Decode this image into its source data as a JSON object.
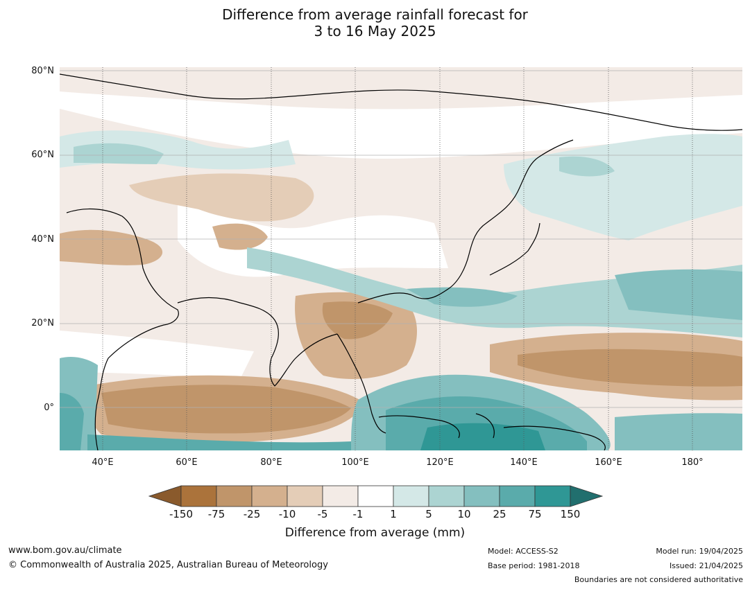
{
  "title": {
    "line1": "Difference from average rainfall forecast for",
    "line2": "3 to 16 May 2025"
  },
  "map": {
    "lat_labels": [
      "80°N",
      "60°N",
      "40°N",
      "20°N",
      "0°"
    ],
    "lat_values": [
      80,
      60,
      40,
      20,
      0
    ],
    "lon_labels": [
      "40°E",
      "60°E",
      "80°E",
      "100°E",
      "120°E",
      "140°E",
      "160°E",
      "180°"
    ],
    "lon_values": [
      40,
      60,
      80,
      100,
      120,
      140,
      160,
      180
    ],
    "extent": {
      "lon_min": 30,
      "lon_max": 192,
      "lat_min": -10,
      "lat_max": 81
    }
  },
  "colorbar": {
    "ticks": [
      "-150",
      "-75",
      "-25",
      "-10",
      "-5",
      "-1",
      "1",
      "5",
      "10",
      "25",
      "75",
      "150"
    ],
    "colors": [
      "#8a5a2c",
      "#ab733b",
      "#c0956a",
      "#d4b08e",
      "#e4cdb7",
      "#f3ebe6",
      "#ffffff",
      "#d4e8e7",
      "#acd4d2",
      "#84bfbf",
      "#5aabab",
      "#2f9795",
      "#216f6e"
    ],
    "label": "Difference from average (mm)"
  },
  "footer": {
    "url": "www.bom.gov.au/climate",
    "copyright": "© Commonwealth of Australia 2025, Australian Bureau of Meteorology",
    "model": "Model: ACCESS-S2",
    "base_period": "Base period: 1981-2018",
    "model_run": "Model run: 19/04/2025",
    "issued": "Issued: 21/04/2025",
    "boundaries": "Boundaries are not considered authoritative"
  }
}
